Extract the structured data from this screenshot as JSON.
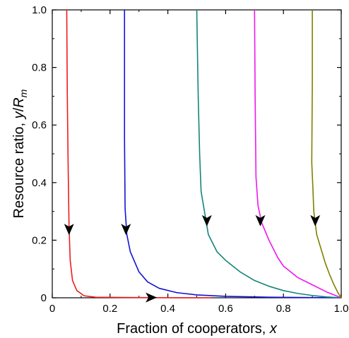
{
  "chart_data": {
    "type": "line",
    "xlabel": "Fraction of cooperators, ",
    "xlabel_var": "x",
    "ylabel": "Resource ratio, ",
    "ylabel_var": "y",
    "ylabel_sep": "/",
    "ylabel_var2": "R",
    "ylabel_sub": "m",
    "xlim": [
      0,
      1
    ],
    "ylim": [
      0,
      1
    ],
    "x_ticks": [
      "0",
      "0.2",
      "0.4",
      "0.6",
      "0.8",
      "1.0"
    ],
    "y_ticks": [
      "0",
      "0.2",
      "0.4",
      "0.6",
      "0.8",
      "1.0"
    ],
    "grid": false,
    "legend": "none",
    "series": [
      {
        "color": "#ee1c1c",
        "points": [
          [
            0.05,
            1.0
          ],
          [
            0.052,
            0.7
          ],
          [
            0.055,
            0.45
          ],
          [
            0.058,
            0.25
          ],
          [
            0.062,
            0.13
          ],
          [
            0.07,
            0.06
          ],
          [
            0.085,
            0.025
          ],
          [
            0.11,
            0.007
          ],
          [
            0.15,
            0.002
          ],
          [
            0.25,
            0.001
          ],
          [
            0.4,
            0.0003
          ],
          [
            0.55,
            0.0
          ]
        ],
        "arrows": [
          {
            "x": 0.058,
            "y": 0.24,
            "dir": "down"
          },
          {
            "x": 0.34,
            "y": 0.001,
            "dir": "right"
          }
        ]
      },
      {
        "color": "#1212d4",
        "points": [
          [
            0.25,
            1.0
          ],
          [
            0.25,
            0.55
          ],
          [
            0.252,
            0.31
          ],
          [
            0.258,
            0.22
          ],
          [
            0.27,
            0.16
          ],
          [
            0.3,
            0.09
          ],
          [
            0.33,
            0.055
          ],
          [
            0.37,
            0.033
          ],
          [
            0.43,
            0.018
          ],
          [
            0.5,
            0.01
          ],
          [
            0.6,
            0.005
          ],
          [
            0.75,
            0.002
          ],
          [
            0.9,
            0.0008
          ],
          [
            1.0,
            0.0
          ]
        ],
        "arrows": [
          {
            "x": 0.255,
            "y": 0.24,
            "dir": "down"
          }
        ]
      },
      {
        "color": "#13857a",
        "points": [
          [
            0.5,
            1.0
          ],
          [
            0.505,
            0.7
          ],
          [
            0.51,
            0.5
          ],
          [
            0.515,
            0.37
          ],
          [
            0.53,
            0.28
          ],
          [
            0.54,
            0.22
          ],
          [
            0.57,
            0.16
          ],
          [
            0.6,
            0.13
          ],
          [
            0.65,
            0.09
          ],
          [
            0.7,
            0.06
          ],
          [
            0.75,
            0.04
          ],
          [
            0.8,
            0.025
          ],
          [
            0.85,
            0.015
          ],
          [
            0.9,
            0.008
          ],
          [
            0.95,
            0.003
          ],
          [
            1.0,
            0.0
          ]
        ],
        "arrows": [
          {
            "x": 0.535,
            "y": 0.27,
            "dir": "down"
          }
        ]
      },
      {
        "color": "#ee17ee",
        "points": [
          [
            0.7,
            1.0
          ],
          [
            0.702,
            0.7
          ],
          [
            0.705,
            0.42
          ],
          [
            0.712,
            0.32
          ],
          [
            0.725,
            0.26
          ],
          [
            0.75,
            0.2
          ],
          [
            0.78,
            0.14
          ],
          [
            0.8,
            0.11
          ],
          [
            0.85,
            0.07
          ],
          [
            0.9,
            0.045
          ],
          [
            0.95,
            0.02
          ],
          [
            1.0,
            0.0
          ]
        ],
        "arrows": [
          {
            "x": 0.72,
            "y": 0.27,
            "dir": "down"
          }
        ]
      },
      {
        "color": "#808000",
        "points": [
          [
            0.9,
            1.0
          ],
          [
            0.9,
            0.75
          ],
          [
            0.898,
            0.47
          ],
          [
            0.902,
            0.38
          ],
          [
            0.905,
            0.3
          ],
          [
            0.915,
            0.22
          ],
          [
            0.93,
            0.17
          ],
          [
            0.945,
            0.12
          ],
          [
            0.96,
            0.08
          ],
          [
            0.975,
            0.045
          ],
          [
            0.99,
            0.015
          ],
          [
            1.0,
            0.0
          ]
        ],
        "arrows": [
          {
            "x": 0.91,
            "y": 0.27,
            "dir": "down"
          }
        ]
      }
    ]
  }
}
